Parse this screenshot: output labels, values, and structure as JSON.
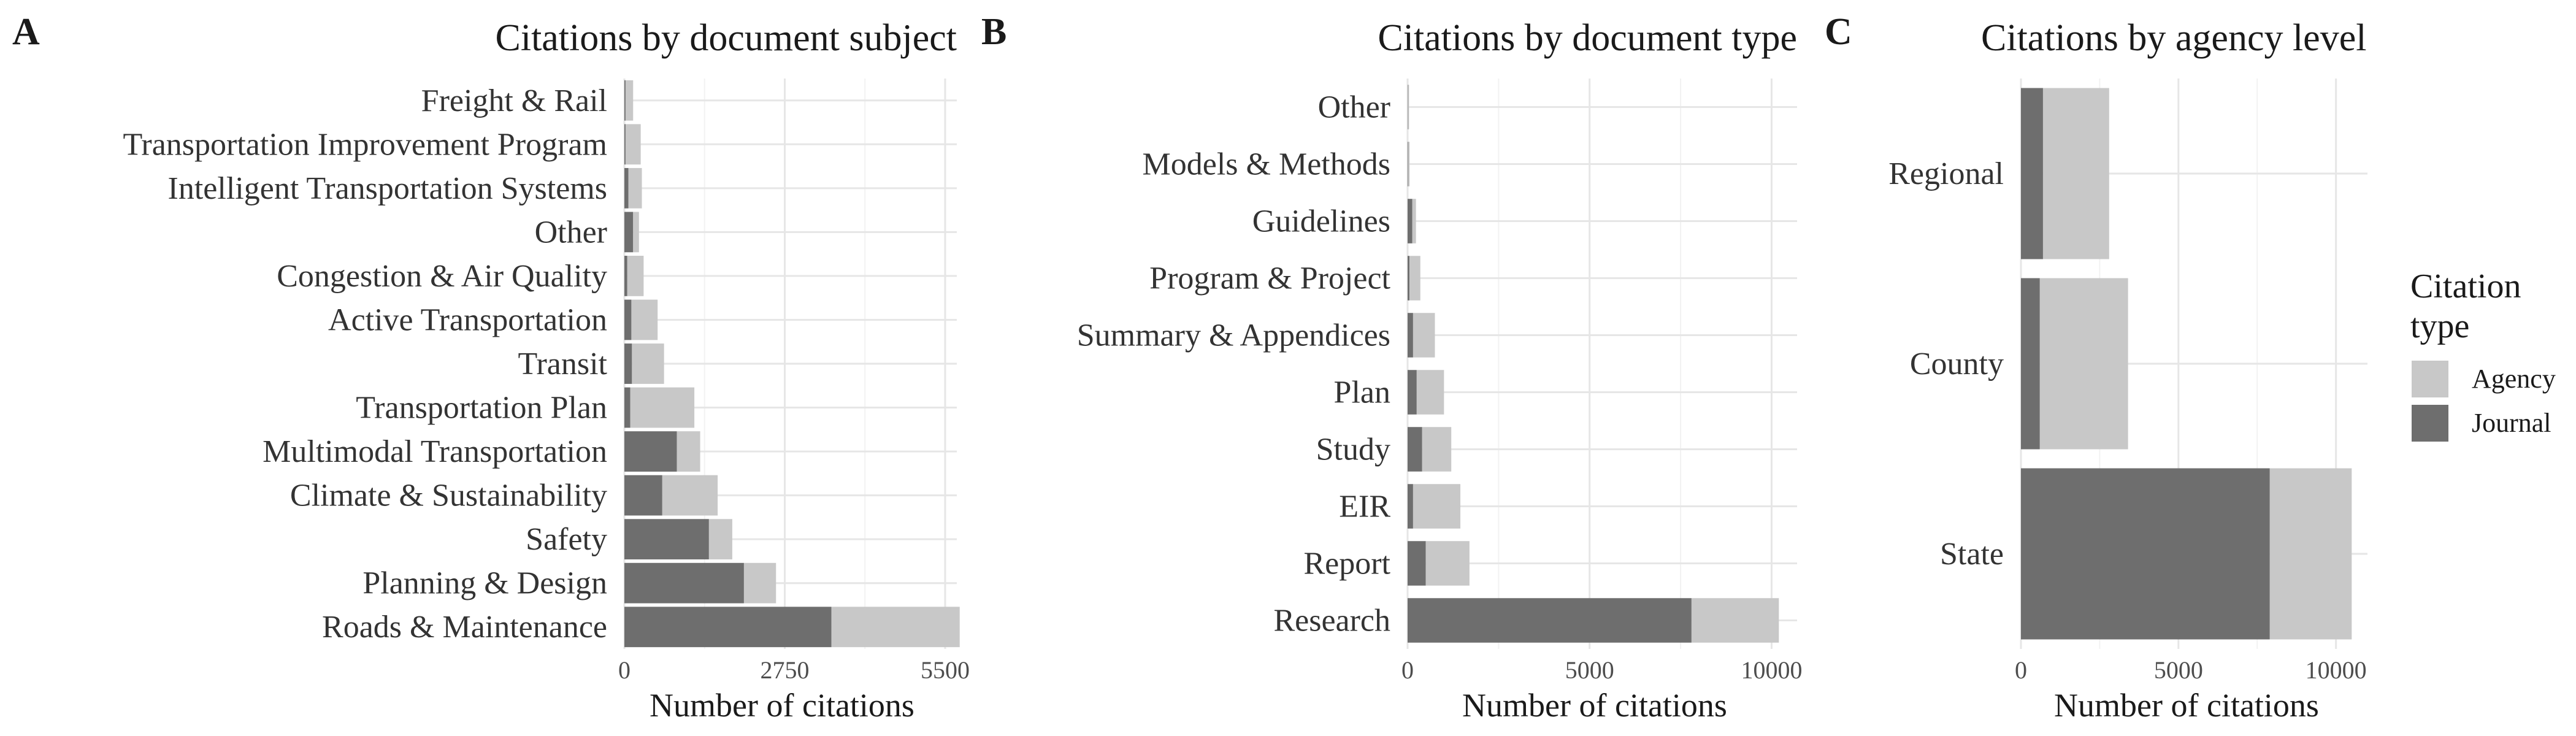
{
  "colors": {
    "Journal": "#6e6e6e",
    "Agency": "#c8c8c8"
  },
  "legend": {
    "title_line1": "Citation",
    "title_line2": "type",
    "items": [
      {
        "name": "Agency",
        "color": "#c8c8c8"
      },
      {
        "name": "Journal",
        "color": "#6e6e6e"
      }
    ]
  },
  "chart_data": [
    {
      "type": "bar",
      "orientation": "horizontal",
      "stacked": true,
      "panel": "A",
      "title": "Citations by document subject",
      "xlabel": "Number of citations",
      "ylabel": "",
      "xlim": [
        0,
        5700
      ],
      "xticks": [
        0,
        2750,
        5500
      ],
      "xtick_labels": [
        "0",
        "2750",
        "5500"
      ],
      "categories": [
        "Roads & Maintenance",
        "Planning & Design",
        "Safety",
        "Climate & Sustainability",
        "Multimodal Transportation",
        "Transportation Plan",
        "Transit",
        "Active Transportation",
        "Congestion & Air Quality",
        "Other",
        "Intelligent Transportation Systems",
        "Transportation Improvement Program",
        "Freight & Rail"
      ],
      "series": [
        {
          "name": "Journal",
          "values": [
            3550,
            2050,
            1450,
            650,
            900,
            100,
            130,
            120,
            50,
            150,
            70,
            20,
            20
          ]
        },
        {
          "name": "Agency",
          "values": [
            2200,
            550,
            400,
            950,
            400,
            1100,
            550,
            450,
            280,
            100,
            230,
            260,
            130
          ]
        }
      ]
    },
    {
      "type": "bar",
      "orientation": "horizontal",
      "stacked": true,
      "panel": "B",
      "title": "Citations by document type",
      "xlabel": "Number of citations",
      "ylabel": "",
      "xlim": [
        0,
        10700
      ],
      "xticks": [
        0,
        5000,
        10000
      ],
      "xtick_labels": [
        "0",
        "5000",
        "10000"
      ],
      "categories": [
        "Research",
        "Report",
        "EIR",
        "Study",
        "Plan",
        "Summary & Appendices",
        "Program & Project",
        "Guidelines",
        "Models & Methods",
        "Other"
      ],
      "series": [
        {
          "name": "Journal",
          "values": [
            7800,
            500,
            150,
            400,
            250,
            150,
            50,
            130,
            15,
            10
          ]
        },
        {
          "name": "Agency",
          "values": [
            2400,
            1200,
            1300,
            800,
            750,
            600,
            300,
            100,
            40,
            30
          ]
        }
      ]
    },
    {
      "type": "bar",
      "orientation": "horizontal",
      "stacked": true,
      "panel": "C",
      "title": "Citations by agency level",
      "xlabel": "Number of citations",
      "ylabel": "",
      "xlim": [
        0,
        11000
      ],
      "xticks": [
        0,
        5000,
        10000
      ],
      "xtick_labels": [
        "0",
        "5000",
        "10000"
      ],
      "categories": [
        "State",
        "County",
        "Regional"
      ],
      "series": [
        {
          "name": "Journal",
          "values": [
            7900,
            600,
            700
          ]
        },
        {
          "name": "Agency",
          "values": [
            2600,
            2800,
            2100
          ]
        }
      ]
    }
  ]
}
